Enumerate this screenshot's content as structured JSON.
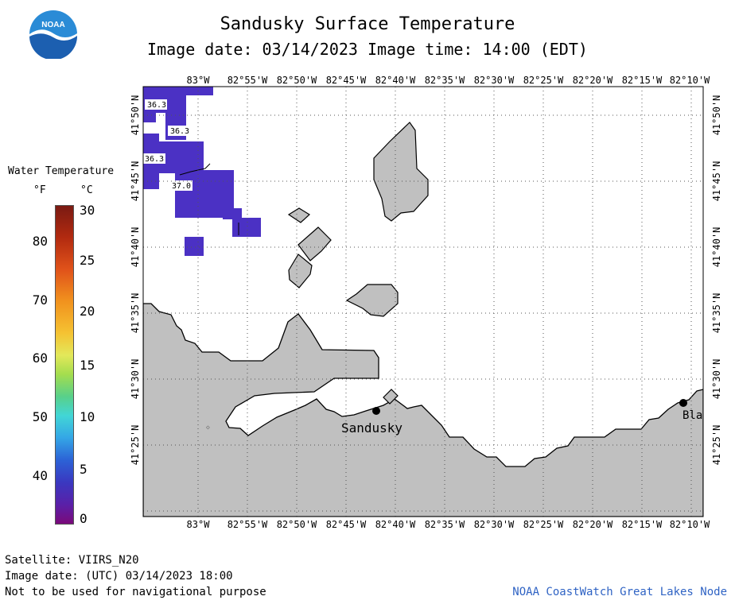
{
  "header": {
    "title": "Sandusky Surface Temperature",
    "subtitle": "Image date: 03/14/2023    Image time: 14:00 (EDT)"
  },
  "logo": {
    "text": "NOAA",
    "icon": "noaa-logo-icon"
  },
  "legend": {
    "title": "Water Temperature",
    "unit_f": "°F",
    "unit_c": "°C",
    "f_ticks": [
      "80",
      "70",
      "60",
      "50",
      "40"
    ],
    "c_ticks": [
      "30",
      "25",
      "20",
      "15",
      "10",
      "5",
      "0"
    ]
  },
  "map": {
    "lon_labels": [
      "83°W",
      "82°55'W",
      "82°50'W",
      "82°45'W",
      "82°40'W",
      "82°35'W",
      "82°30'W",
      "82°25'W",
      "82°20'W",
      "82°15'W",
      "82°10'W"
    ],
    "lat_labels": [
      "41°50'N",
      "41°45'N",
      "41°40'N",
      "41°35'N",
      "41°30'N",
      "41°25'N"
    ],
    "temp_labels": [
      "36.3",
      "36.3",
      "36.3",
      "37.0"
    ],
    "places": [
      "Sandusky",
      "Bla"
    ],
    "colors": {
      "land": "#c0c0c0",
      "water_cold": "#4b31c4",
      "accent": "#2f63c4"
    }
  },
  "footer": {
    "satellite": "Satellite: VIIRS_N20",
    "utc_date": "Image date: (UTC) 03/14/2023  18:00",
    "disclaimer": "Not to be used for navigational purpose",
    "credit": "NOAA CoastWatch Great Lakes Node"
  }
}
